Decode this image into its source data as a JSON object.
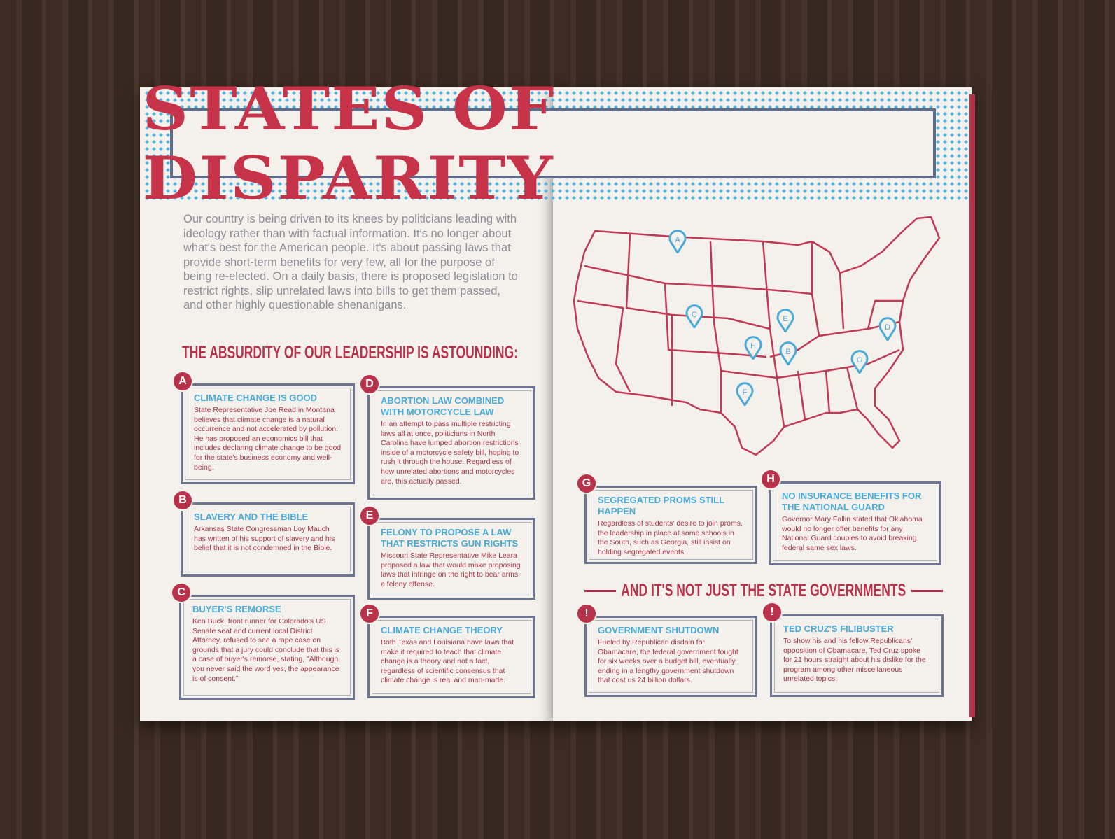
{
  "header": {
    "title": "STATES OF DISPARITY"
  },
  "intro": "Our country is being driven to its knees by politicians leading with ideology rather than with factual information. It's no longer about what's best for the American people. It's about passing laws that provide short-term benefits for very few, all for the purpose of being re-elected. On a daily basis, there is proposed legislation to restrict rights, slip unrelated laws into bills to get them passed, and other highly questionable shenanigans.",
  "subheading": "THE ABSURDITY OF OUR LEADERSHIP IS ASTOUNDING:",
  "cards": [
    {
      "marker": "A",
      "title": "CLIMATE CHANGE IS GOOD",
      "body": "State Representative Joe Read in Montana believes that climate change is a natural occurrence and not accelerated by pollution. He has proposed an economics bill that includes declaring climate change to be good for the state's business economy and well-being."
    },
    {
      "marker": "B",
      "title": "SLAVERY AND THE BIBLE",
      "body": "Arkansas State Congressman Loy Mauch has written of his support of slavery and his belief that it is not condemned in the Bible."
    },
    {
      "marker": "C",
      "title": "BUYER'S REMORSE",
      "body": "Ken Buck, front runner for Colorado's US Senate seat and current local District Attorney, refused to see a rape case on grounds that a jury could conclude that this is a case of buyer's remorse, stating, \"Although, you never said the word yes, the appearance is of consent.\""
    },
    {
      "marker": "D",
      "title": "ABORTION LAW COMBINED WITH MOTORCYCLE LAW",
      "body": "In an attempt to pass multiple restricting laws all at once, politicians in North Carolina have lumped abortion restrictions inside of a motorcycle safety bill, hoping to rush it through the house. Regardless of how unrelated abortions and motorcycles are, this actually passed."
    },
    {
      "marker": "E",
      "title": "FELONY TO PROPOSE A LAW THAT RESTRICTS GUN RIGHTS",
      "body": "Missouri State Representative Mike Leara proposed a law that would make proposing laws that infringe on the right to bear arms a felony offense."
    },
    {
      "marker": "F",
      "title": "CLIMATE CHANGE THEORY",
      "body": "Both Texas and Louisiana have laws that make it required to teach that climate change is a theory and not a fact, regardless of scientific consensus that climate change is real and man-made."
    },
    {
      "marker": "G",
      "title": "SEGREGATED PROMS STILL HAPPEN",
      "body": "Regardless of students' desire to join proms, the leadership in place at some schools in the South, such as Georgia, still insist on holding segregated events."
    },
    {
      "marker": "H",
      "title": "NO INSURANCE BENEFITS FOR THE NATIONAL GUARD",
      "body": "Governor Mary Fallin stated that Oklahoma would no longer offer benefits for any National Guard couples to avoid breaking federal same sex laws."
    }
  ],
  "map": {
    "pins": [
      "A",
      "C",
      "E",
      "D",
      "H",
      "B",
      "G",
      "F"
    ]
  },
  "section": {
    "title": "AND IT'S NOT JUST THE STATE GOVERNMENTS",
    "cards": [
      {
        "marker": "!",
        "title": "GOVERNMENT SHUTDOWN",
        "body": "Fueled by Republican disdain for Obamacare, the federal government fought for six weeks over a budget bill, eventually ending in a lengthy government shutdown that cost us 24 billion dollars."
      },
      {
        "marker": "!",
        "title": "TED CRUZ'S FILIBUSTER",
        "body": "To show his and his fellow Republicans' opposition of Obamacare, Ted Cruz spoke for 21 hours straight about his dislike for the program among other miscellaneous unrelated topics."
      }
    ]
  }
}
